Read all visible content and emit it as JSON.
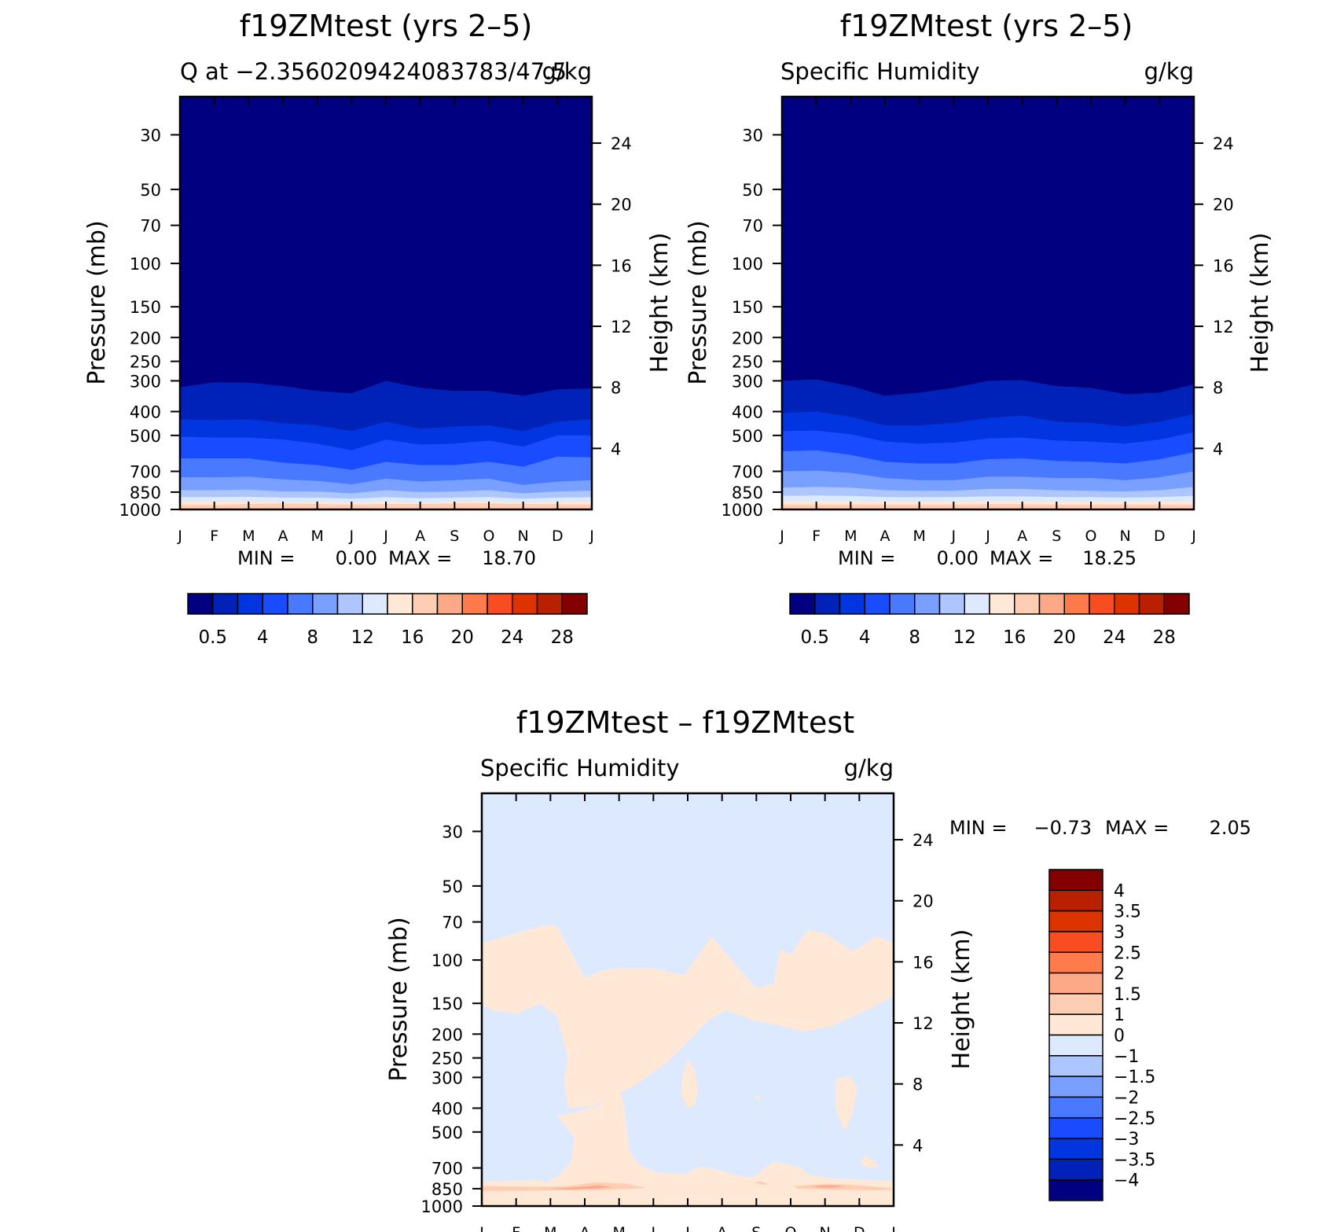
{
  "figure": {
    "background": "#ffffff",
    "months": [
      "J",
      "F",
      "M",
      "A",
      "M",
      "J",
      "J",
      "A",
      "S",
      "O",
      "N",
      "D",
      "J"
    ],
    "pressure_ticks": [
      30,
      50,
      70,
      100,
      150,
      200,
      250,
      300,
      400,
      500,
      700,
      850,
      1000
    ],
    "height_ticks": [
      24,
      20,
      16,
      12,
      8,
      4
    ],
    "pressure_axis_label": "Pressure (mb)",
    "height_axis_label": "Height (km)"
  },
  "chart_data": [
    {
      "type": "heatmap",
      "title": "f19ZMtest (yrs 2–5)",
      "subtitle_left": "Q at −2.3560209424083783/47.5",
      "subtitle_right": "g/kg",
      "ylabel": "Pressure (mb)",
      "ylabel_right": "Height (km)",
      "stats": {
        "min_label": "MIN =",
        "min": "0.00",
        "max_label": "MAX =",
        "max": "18.70"
      },
      "colorbar": {
        "orientation": "horizontal",
        "tick_labels": [
          "0.5",
          "4",
          "8",
          "12",
          "16",
          "20",
          "24",
          "28"
        ],
        "colors": [
          "#000080",
          "#0022b8",
          "#0035e0",
          "#1a4cff",
          "#4879ff",
          "#7aa0ff",
          "#aec6ff",
          "#dce9ff",
          "#ffe9d6",
          "#ffcdb2",
          "#fda886",
          "#ff7b4c",
          "#f94c21",
          "#dd3300",
          "#b82000",
          "#840000"
        ]
      },
      "levels_mb": [
        {
          "color": "#0022b8",
          "top_mb": [
            318,
            304,
            305,
            315,
            330,
            337,
            300,
            320,
            330,
            330,
            345,
            325,
            322
          ]
        },
        {
          "color": "#0035e0",
          "top_mb": [
            430,
            433,
            430,
            445,
            455,
            480,
            440,
            470,
            460,
            455,
            480,
            440,
            430
          ]
        },
        {
          "color": "#1a4cff",
          "top_mb": [
            505,
            510,
            510,
            520,
            540,
            575,
            520,
            545,
            540,
            525,
            555,
            500,
            500
          ]
        },
        {
          "color": "#4879ff",
          "top_mb": [
            620,
            620,
            620,
            645,
            660,
            690,
            640,
            660,
            660,
            640,
            670,
            610,
            615
          ]
        },
        {
          "color": "#7aa0ff",
          "top_mb": [
            740,
            740,
            735,
            755,
            765,
            790,
            750,
            770,
            760,
            750,
            795,
            770,
            760
          ]
        },
        {
          "color": "#aec6ff",
          "top_mb": [
            835,
            835,
            830,
            845,
            845,
            860,
            835,
            850,
            845,
            835,
            860,
            845,
            840
          ]
        },
        {
          "color": "#dce9ff",
          "top_mb": [
            890,
            890,
            888,
            895,
            895,
            905,
            890,
            900,
            895,
            890,
            905,
            895,
            892
          ]
        },
        {
          "color": "#ffe9d6",
          "top_mb": [
            930,
            930,
            928,
            935,
            932,
            940,
            930,
            938,
            932,
            930,
            940,
            932,
            930
          ]
        },
        {
          "color": "#ffcdb2",
          "top_mb": [
            955,
            958,
            950,
            945,
            950,
            955,
            950,
            950,
            945,
            945,
            950,
            952,
            955
          ]
        }
      ]
    },
    {
      "type": "heatmap",
      "title": "f19ZMtest (yrs 2–5)",
      "subtitle_left": "Specific Humidity",
      "subtitle_right": "g/kg",
      "ylabel": "Pressure (mb)",
      "ylabel_right": "Height (km)",
      "stats": {
        "min_label": "MIN =",
        "min": "0.00",
        "max_label": "MAX =",
        "max": "18.25"
      },
      "colorbar": {
        "orientation": "horizontal",
        "tick_labels": [
          "0.5",
          "4",
          "8",
          "12",
          "16",
          "20",
          "24",
          "28"
        ],
        "colors": [
          "#000080",
          "#0022b8",
          "#0035e0",
          "#1a4cff",
          "#4879ff",
          "#7aa0ff",
          "#aec6ff",
          "#dce9ff",
          "#ffe9d6",
          "#ffcdb2",
          "#fda886",
          "#ff7b4c",
          "#f94c21",
          "#dd3300",
          "#b82000",
          "#840000"
        ]
      },
      "levels_mb": [
        {
          "color": "#0022b8",
          "top_mb": [
            300,
            296,
            315,
            345,
            335,
            320,
            300,
            298,
            315,
            320,
            340,
            335,
            310
          ]
        },
        {
          "color": "#0035e0",
          "top_mb": [
            405,
            400,
            420,
            455,
            455,
            445,
            425,
            415,
            440,
            445,
            460,
            440,
            410
          ]
        },
        {
          "color": "#1a4cff",
          "top_mb": [
            480,
            478,
            495,
            530,
            540,
            535,
            515,
            510,
            525,
            530,
            540,
            520,
            485
          ]
        },
        {
          "color": "#4879ff",
          "top_mb": [
            580,
            575,
            600,
            640,
            650,
            650,
            625,
            620,
            635,
            640,
            650,
            625,
            585
          ]
        },
        {
          "color": "#7aa0ff",
          "top_mb": [
            700,
            695,
            710,
            745,
            760,
            760,
            735,
            735,
            745,
            745,
            760,
            740,
            700
          ]
        },
        {
          "color": "#aec6ff",
          "top_mb": [
            815,
            810,
            815,
            835,
            840,
            840,
            825,
            825,
            835,
            840,
            845,
            835,
            810
          ]
        },
        {
          "color": "#dce9ff",
          "top_mb": [
            880,
            878,
            880,
            890,
            890,
            890,
            885,
            885,
            890,
            890,
            895,
            890,
            880
          ]
        },
        {
          "color": "#ffe9d6",
          "top_mb": [
            925,
            925,
            925,
            930,
            930,
            930,
            925,
            925,
            930,
            930,
            932,
            930,
            925
          ]
        },
        {
          "color": "#ffcdb2",
          "top_mb": [
            955,
            955,
            955,
            955,
            955,
            955,
            952,
            952,
            955,
            955,
            955,
            955,
            955
          ]
        }
      ]
    },
    {
      "type": "heatmap",
      "title": "f19ZMtest – f19ZMtest",
      "subtitle_left": "Specific Humidity",
      "subtitle_right": "g/kg",
      "ylabel": "Pressure (mb)",
      "ylabel_right": "Height (km)",
      "stats": {
        "min_label": "MIN =",
        "min": "−0.73",
        "max_label": "MAX =",
        "max": "2.05"
      },
      "colorbar": {
        "orientation": "vertical",
        "tick_labels": [
          "4",
          "3.5",
          "3",
          "2.5",
          "2",
          "1.5",
          "1",
          "0",
          "−1",
          "−1.5",
          "−2",
          "−2.5",
          "−3",
          "−3.5",
          "−4"
        ],
        "colors": [
          "#840000",
          "#b82000",
          "#dd3300",
          "#f94c21",
          "#ff7b4c",
          "#fda886",
          "#ffcdb2",
          "#ffe9d6",
          "#dce9ff",
          "#aec6ff",
          "#7aa0ff",
          "#4879ff",
          "#1a4cff",
          "#0035e0",
          "#0022b8",
          "#000080"
        ]
      },
      "base_color": "#dce9ff",
      "regions_month_mb": [
        {
          "color": "#ffe9d6",
          "points": [
            [
              0,
              85
            ],
            [
              1,
              78
            ],
            [
              1.8,
              72
            ],
            [
              2.2,
              73
            ],
            [
              3.0,
              118
            ],
            [
              3.5,
              110
            ],
            [
              4.0,
              108
            ],
            [
              5.0,
              108
            ],
            [
              5.9,
              115
            ],
            [
              6.7,
              80
            ],
            [
              7.0,
              90
            ],
            [
              8.0,
              130
            ],
            [
              8.5,
              125
            ],
            [
              8.7,
              90
            ],
            [
              9.0,
              95
            ],
            [
              9.5,
              75
            ],
            [
              10.0,
              78
            ],
            [
              10.8,
              92
            ],
            [
              11.5,
              80
            ],
            [
              12,
              85
            ],
            [
              12,
              140
            ],
            [
              11.0,
              165
            ],
            [
              10.2,
              185
            ],
            [
              9.4,
              195
            ],
            [
              8.7,
              185
            ],
            [
              7.9,
              175
            ],
            [
              7.1,
              160
            ],
            [
              6.5,
              180
            ],
            [
              6.0,
              215
            ],
            [
              5.4,
              260
            ],
            [
              4.5,
              320
            ],
            [
              3.3,
              390
            ],
            [
              2.5,
              400
            ],
            [
              2.4,
              310
            ],
            [
              2.5,
              250
            ],
            [
              2.2,
              170
            ],
            [
              1.7,
              150
            ],
            [
              1.0,
              165
            ],
            [
              0.3,
              160
            ],
            [
              0,
              150
            ]
          ]
        },
        {
          "color": "#ffe9d6",
          "points": [
            [
              2.2,
              430
            ],
            [
              2.7,
              530
            ],
            [
              2.6,
              650
            ],
            [
              2.3,
              740
            ],
            [
              1.9,
              800
            ],
            [
              1.6,
              780
            ],
            [
              0.5,
              790
            ],
            [
              0,
              795
            ],
            [
              0,
              1000
            ],
            [
              12,
              1000
            ],
            [
              12,
              790
            ],
            [
              11,
              780
            ],
            [
              10.2,
              770
            ],
            [
              9.6,
              750
            ],
            [
              9.2,
              690
            ],
            [
              8.5,
              660
            ],
            [
              7.9,
              760
            ],
            [
              7.6,
              760
            ],
            [
              7.0,
              720
            ],
            [
              6.4,
              690
            ],
            [
              5.9,
              740
            ],
            [
              5.1,
              730
            ],
            [
              4.6,
              680
            ],
            [
              4.3,
              600
            ],
            [
              4.2,
              450
            ],
            [
              4.1,
              360
            ],
            [
              3.9,
              340
            ],
            [
              3.4,
              390
            ],
            [
              2.7,
              415
            ]
          ]
        },
        {
          "color": "#ffe9d6",
          "points": [
            [
              6.0,
              250
            ],
            [
              6.2,
              280
            ],
            [
              6.3,
              340
            ],
            [
              6.2,
              390
            ],
            [
              6.0,
              400
            ],
            [
              5.8,
              350
            ],
            [
              5.85,
              300
            ]
          ]
        },
        {
          "color": "#ffe9d6",
          "points": [
            [
              10.3,
              305
            ],
            [
              10.7,
              295
            ],
            [
              10.95,
              330
            ],
            [
              10.8,
              420
            ],
            [
              10.6,
              490
            ],
            [
              10.5,
              470
            ],
            [
              10.3,
              400
            ]
          ]
        },
        {
          "color": "#ffe9d6",
          "points": [
            [
              11.2,
              620
            ],
            [
              11.4,
              650
            ],
            [
              11.6,
              690
            ],
            [
              11.4,
              700
            ],
            [
              11.1,
              690
            ],
            [
              11.05,
              650
            ]
          ]
        },
        {
          "color": "#ffe9d6",
          "points": [
            [
              7.97,
              355
            ],
            [
              8.12,
              355
            ],
            [
              8.1,
              368
            ],
            [
              7.95,
              365
            ]
          ]
        },
        {
          "color": "#ffcdb2",
          "points": [
            [
              0,
              830
            ],
            [
              1.5,
              835
            ],
            [
              2.5,
              830
            ],
            [
              3.3,
              800
            ],
            [
              4.2,
              810
            ],
            [
              4.8,
              845
            ],
            [
              3.5,
              860
            ],
            [
              1.8,
              865
            ],
            [
              0,
              868
            ]
          ]
        },
        {
          "color": "#ffcdb2",
          "points": [
            [
              7.9,
              800
            ],
            [
              8.1,
              795
            ],
            [
              8.4,
              815
            ],
            [
              8.2,
              820
            ]
          ]
        },
        {
          "color": "#ffcdb2",
          "points": [
            [
              9.1,
              830
            ],
            [
              9.8,
              815
            ],
            [
              10.5,
              815
            ],
            [
              11.3,
              830
            ],
            [
              11.9,
              845
            ],
            [
              12,
              860
            ],
            [
              11.0,
              860
            ],
            [
              10.0,
              855
            ],
            [
              9.2,
              850
            ]
          ]
        },
        {
          "color": "#fda886",
          "points": [
            [
              2.0,
              850
            ],
            [
              2.9,
              835
            ],
            [
              3.4,
              825
            ],
            [
              3.8,
              835
            ],
            [
              3.4,
              848
            ],
            [
              2.6,
              855
            ]
          ]
        },
        {
          "color": "#fda886",
          "points": [
            [
              9.6,
              830
            ],
            [
              10.1,
              822
            ],
            [
              10.6,
              830
            ],
            [
              10.2,
              842
            ],
            [
              9.8,
              840
            ]
          ]
        }
      ]
    }
  ]
}
